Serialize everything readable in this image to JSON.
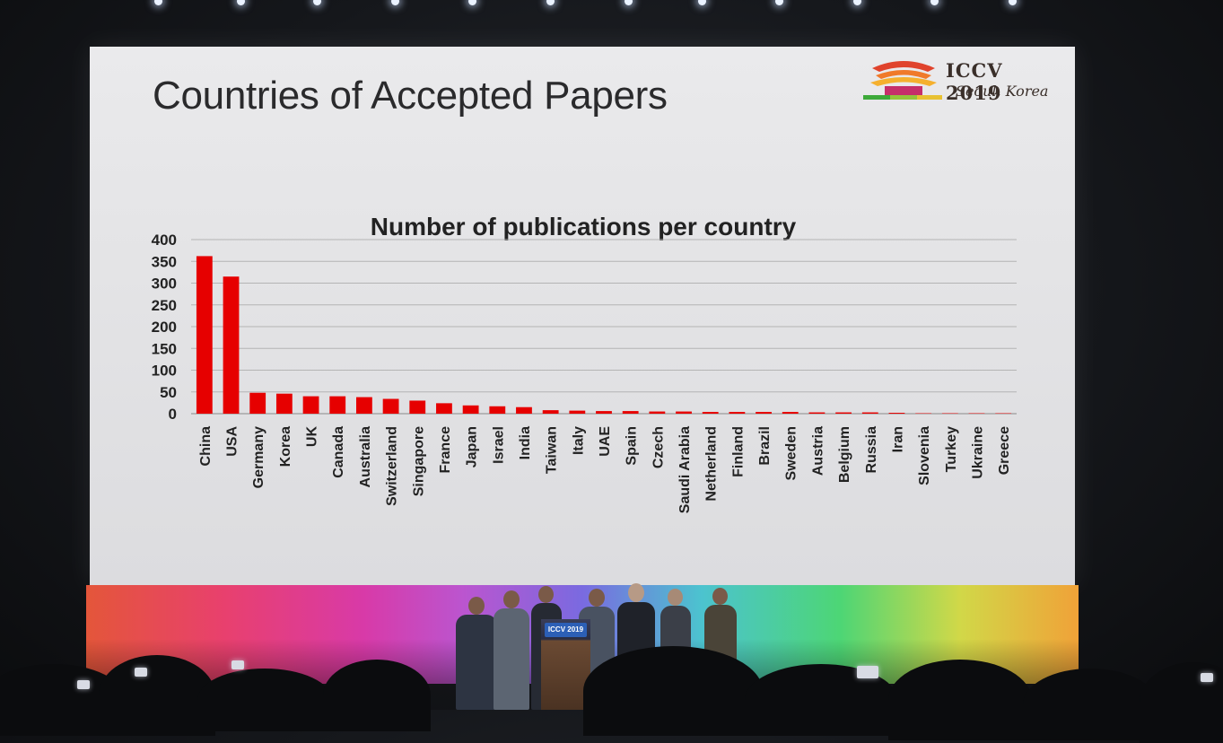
{
  "slide": {
    "title": "Countries of Accepted Papers"
  },
  "logo": {
    "name": "ICCV 2019",
    "location": "Seoul, Korea"
  },
  "podium_sign": "ICCV 2019",
  "colors": {
    "bar": "#e60000",
    "slide_background": "#e4e4e6",
    "text": "#2a2a2c"
  },
  "chart_data": {
    "type": "bar",
    "title": "Number of publications per country",
    "xlabel": "",
    "ylabel": "",
    "ylim": [
      0,
      400
    ],
    "y_ticks": [
      0,
      50,
      100,
      150,
      200,
      250,
      300,
      350,
      400
    ],
    "grid": true,
    "categories": [
      "China",
      "USA",
      "Germany",
      "Korea",
      "UK",
      "Canada",
      "Australia",
      "Switzerland",
      "Singapore",
      "France",
      "Japan",
      "Israel",
      "India",
      "Taiwan",
      "Italy",
      "UAE",
      "Spain",
      "Czech",
      "Saudi Arabia",
      "Netherland",
      "Finland",
      "Brazil",
      "Sweden",
      "Austria",
      "Belgium",
      "Russia",
      "Iran",
      "Slovenia",
      "Turkey",
      "Ukraine",
      "Greece"
    ],
    "values": [
      362,
      315,
      48,
      46,
      40,
      40,
      38,
      34,
      30,
      24,
      19,
      17,
      15,
      8,
      7,
      6,
      6,
      5,
      5,
      4,
      4,
      4,
      4,
      3,
      3,
      3,
      2,
      1,
      1,
      1,
      1
    ]
  }
}
